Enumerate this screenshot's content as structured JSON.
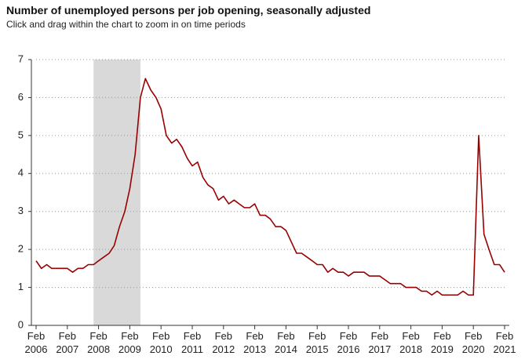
{
  "chart_data": {
    "type": "line",
    "title": "Number of unemployed persons per job opening, seasonally adjusted",
    "subtitle": "Click and drag within the chart to zoom in on time periods",
    "x": [
      2006.08,
      2006.25,
      2006.42,
      2006.58,
      2006.75,
      2006.92,
      2007.08,
      2007.25,
      2007.42,
      2007.58,
      2007.75,
      2007.92,
      2008.08,
      2008.25,
      2008.42,
      2008.58,
      2008.75,
      2008.92,
      2009.08,
      2009.25,
      2009.42,
      2009.58,
      2009.75,
      2009.92,
      2010.08,
      2010.25,
      2010.42,
      2010.58,
      2010.75,
      2010.92,
      2011.08,
      2011.25,
      2011.42,
      2011.58,
      2011.75,
      2011.92,
      2012.08,
      2012.25,
      2012.42,
      2012.58,
      2012.75,
      2012.92,
      2013.08,
      2013.25,
      2013.42,
      2013.58,
      2013.75,
      2013.92,
      2014.08,
      2014.25,
      2014.42,
      2014.58,
      2014.75,
      2014.92,
      2015.08,
      2015.25,
      2015.42,
      2015.58,
      2015.75,
      2015.92,
      2016.08,
      2016.25,
      2016.42,
      2016.58,
      2016.75,
      2016.92,
      2017.08,
      2017.25,
      2017.42,
      2017.58,
      2017.75,
      2017.92,
      2018.08,
      2018.25,
      2018.42,
      2018.58,
      2018.75,
      2018.92,
      2019.08,
      2019.25,
      2019.42,
      2019.58,
      2019.75,
      2019.92,
      2020.08,
      2020.25,
      2020.42,
      2020.58,
      2020.75,
      2020.92,
      2021.08
    ],
    "values": [
      1.7,
      1.5,
      1.6,
      1.5,
      1.5,
      1.5,
      1.5,
      1.4,
      1.5,
      1.5,
      1.6,
      1.6,
      1.7,
      1.8,
      1.9,
      2.1,
      2.6,
      3.0,
      3.6,
      4.5,
      6.0,
      6.5,
      6.2,
      6.0,
      5.7,
      5.0,
      4.8,
      4.9,
      4.7,
      4.4,
      4.2,
      4.3,
      3.9,
      3.7,
      3.6,
      3.3,
      3.4,
      3.2,
      3.3,
      3.2,
      3.1,
      3.1,
      3.2,
      2.9,
      2.9,
      2.8,
      2.6,
      2.6,
      2.5,
      2.2,
      1.9,
      1.9,
      1.8,
      1.7,
      1.6,
      1.6,
      1.4,
      1.5,
      1.4,
      1.4,
      1.3,
      1.4,
      1.4,
      1.4,
      1.3,
      1.3,
      1.3,
      1.2,
      1.1,
      1.1,
      1.1,
      1.0,
      1.0,
      1.0,
      0.9,
      0.9,
      0.8,
      0.9,
      0.8,
      0.8,
      0.8,
      0.8,
      0.9,
      0.8,
      0.8,
      5.0,
      2.4,
      2.0,
      1.6,
      1.6,
      1.4
    ],
    "color": "#990000",
    "shaded_periods": [
      [
        2007.92,
        2009.42
      ]
    ],
    "shade_color": "#d9d9d9",
    "xlim": [
      2006.08,
      2021.08
    ],
    "xticks": [
      {
        "value": 2006.08,
        "label": "Feb\n2006"
      },
      {
        "value": 2007.08,
        "label": "Feb\n2007"
      },
      {
        "value": 2008.08,
        "label": "Feb\n2008"
      },
      {
        "value": 2009.08,
        "label": "Feb\n2009"
      },
      {
        "value": 2010.08,
        "label": "Feb\n2010"
      },
      {
        "value": 2011.08,
        "label": "Feb\n2011"
      },
      {
        "value": 2012.08,
        "label": "Feb\n2012"
      },
      {
        "value": 2013.08,
        "label": "Feb\n2013"
      },
      {
        "value": 2014.08,
        "label": "Feb\n2014"
      },
      {
        "value": 2015.08,
        "label": "Feb\n2015"
      },
      {
        "value": 2016.08,
        "label": "Feb\n2016"
      },
      {
        "value": 2017.08,
        "label": "Feb\n2017"
      },
      {
        "value": 2018.08,
        "label": "Feb\n2018"
      },
      {
        "value": 2019.08,
        "label": "Feb\n2019"
      },
      {
        "value": 2020.08,
        "label": "Feb\n2020"
      },
      {
        "value": 2021.08,
        "label": "Feb\n2021"
      }
    ],
    "ylim": [
      0,
      7
    ],
    "yticks": [
      0,
      1,
      2,
      3,
      4,
      5,
      6,
      7
    ],
    "grid": true
  }
}
